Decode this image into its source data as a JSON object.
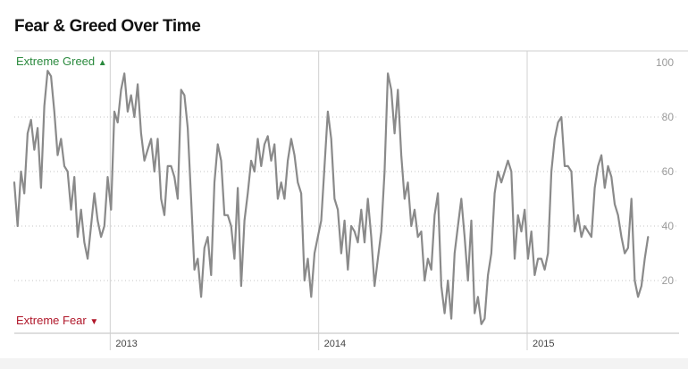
{
  "title": "Fear & Greed Over Time",
  "zones": {
    "greed": {
      "label": "Extreme Greed",
      "marker": "▲",
      "color": "#2b8a3e"
    },
    "fear": {
      "label": "Extreme Fear",
      "marker": "▼",
      "color": "#b0172a"
    }
  },
  "chart_data": {
    "type": "line",
    "title": "Fear & Greed Over Time",
    "xlabel": "",
    "ylabel": "",
    "ylim": [
      0,
      100
    ],
    "yticks": [
      20,
      40,
      60,
      80,
      100
    ],
    "xlim": [
      2012.54,
      2015.6
    ],
    "xticks": [
      {
        "value": 2013,
        "label": "2013"
      },
      {
        "value": 2014,
        "label": "2014"
      },
      {
        "value": 2015,
        "label": "2015"
      }
    ],
    "grid": true,
    "line_color": "#8a8a8a",
    "series": [
      {
        "x": [
          2012.54,
          2012.556,
          2012.572,
          2012.588,
          2012.604,
          2012.62,
          2012.636,
          2012.652,
          2012.668,
          2012.684,
          2012.7,
          2012.716,
          2012.732,
          2012.748,
          2012.764,
          2012.78,
          2012.796,
          2012.812,
          2012.828,
          2012.844,
          2012.86,
          2012.876,
          2012.892,
          2012.908,
          2012.924,
          2012.94,
          2012.956,
          2012.972,
          2012.988,
          2013.004,
          2013.02,
          2013.036,
          2013.052,
          2013.068,
          2013.084,
          2013.1,
          2013.116,
          2013.132,
          2013.148,
          2013.164,
          2013.18,
          2013.196,
          2013.212,
          2013.228,
          2013.244,
          2013.26,
          2013.276,
          2013.292,
          2013.308,
          2013.324,
          2013.34,
          2013.356,
          2013.372,
          2013.388,
          2013.404,
          2013.42,
          2013.436,
          2013.452,
          2013.468,
          2013.484,
          2013.5,
          2013.516,
          2013.532,
          2013.548,
          2013.564,
          2013.58,
          2013.596,
          2013.612,
          2013.628,
          2013.644,
          2013.66,
          2013.676,
          2013.692,
          2013.708,
          2013.724,
          2013.74,
          2013.756,
          2013.772,
          2013.788,
          2013.804,
          2013.82,
          2013.836,
          2013.852,
          2013.868,
          2013.884,
          2013.9,
          2013.916,
          2013.932,
          2013.948,
          2013.964,
          2013.98,
          2013.996,
          2014.012,
          2014.028,
          2014.044,
          2014.06,
          2014.076,
          2014.092,
          2014.108,
          2014.124,
          2014.14,
          2014.156,
          2014.172,
          2014.188,
          2014.204,
          2014.22,
          2014.236,
          2014.252,
          2014.268,
          2014.284,
          2014.3,
          2014.316,
          2014.332,
          2014.348,
          2014.364,
          2014.38,
          2014.396,
          2014.412,
          2014.428,
          2014.444,
          2014.46,
          2014.476,
          2014.492,
          2014.508,
          2014.524,
          2014.54,
          2014.556,
          2014.572,
          2014.588,
          2014.604,
          2014.62,
          2014.636,
          2014.652,
          2014.668,
          2014.684,
          2014.7,
          2014.716,
          2014.732,
          2014.748,
          2014.764,
          2014.78,
          2014.796,
          2014.812,
          2014.828,
          2014.844,
          2014.86,
          2014.876,
          2014.892,
          2014.908,
          2014.924,
          2014.94,
          2014.956,
          2014.972,
          2014.988,
          2015.004,
          2015.02,
          2015.036,
          2015.052,
          2015.068,
          2015.084,
          2015.1,
          2015.116,
          2015.132,
          2015.148,
          2015.164,
          2015.18,
          2015.196,
          2015.212,
          2015.228,
          2015.244,
          2015.26,
          2015.276,
          2015.292,
          2015.308,
          2015.324,
          2015.34,
          2015.356,
          2015.372,
          2015.388,
          2015.404,
          2015.42,
          2015.436,
          2015.452,
          2015.468,
          2015.484,
          2015.5,
          2015.516,
          2015.532,
          2015.548,
          2015.564,
          2015.58
        ],
        "values": [
          56,
          40,
          60,
          52,
          74,
          79,
          68,
          76,
          54,
          84,
          97,
          95,
          82,
          66,
          72,
          62,
          60,
          46,
          58,
          36,
          46,
          34,
          28,
          40,
          52,
          42,
          36,
          40,
          58,
          46,
          82,
          78,
          90,
          96,
          82,
          88,
          80,
          92,
          74,
          64,
          68,
          72,
          60,
          72,
          50,
          44,
          62,
          62,
          58,
          50,
          90,
          88,
          76,
          50,
          24,
          28,
          14,
          32,
          36,
          22,
          56,
          70,
          64,
          44,
          44,
          40,
          28,
          54,
          18,
          42,
          52,
          64,
          60,
          72,
          62,
          70,
          73,
          64,
          70,
          50,
          56,
          50,
          64,
          72,
          66,
          56,
          52,
          20,
          28,
          14,
          30,
          36,
          42,
          62,
          82,
          72,
          50,
          46,
          30,
          42,
          24,
          40,
          38,
          34,
          46,
          34,
          50,
          36,
          18,
          28,
          38,
          60,
          96,
          90,
          74,
          90,
          66,
          50,
          56,
          40,
          46,
          36,
          38,
          20,
          28,
          24,
          44,
          52,
          18,
          8,
          20,
          6,
          30,
          40,
          50,
          36,
          20,
          42,
          8,
          14,
          4,
          6,
          22,
          30,
          52,
          60,
          56,
          60,
          64,
          60,
          28,
          44,
          38,
          46,
          28,
          38,
          22,
          28,
          28,
          24,
          30,
          60,
          72,
          78,
          80,
          62,
          62,
          60,
          38,
          44,
          36,
          40,
          38,
          36,
          54,
          62,
          66,
          54,
          62,
          58,
          48,
          44,
          36,
          30,
          32,
          50,
          20,
          14,
          18,
          28,
          36
        ]
      }
    ]
  }
}
